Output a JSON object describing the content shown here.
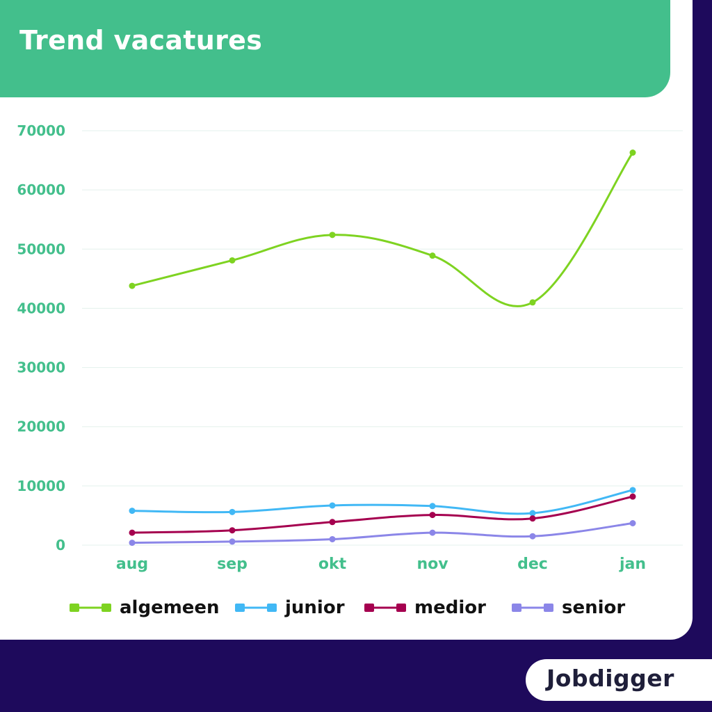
{
  "page": {
    "title": "Trend vacatures",
    "logo_text": "Jobdigger"
  },
  "colors": {
    "background": "#1e0a5c",
    "card": "#ffffff",
    "title_bar": "#43bf8c",
    "axis_labels": "#43bf8c",
    "gridline": "#e3f1ec"
  },
  "chart_data": {
    "type": "line",
    "title": "Trend vacatures",
    "categories": [
      "aug",
      "sep",
      "okt",
      "nov",
      "dec",
      "jan"
    ],
    "ylim": [
      0,
      70000
    ],
    "yticks": [
      0,
      10000,
      20000,
      30000,
      40000,
      50000,
      60000,
      70000
    ],
    "grid": true,
    "legend_position": "bottom",
    "series": [
      {
        "name": "algemeen",
        "color": "#7ed321",
        "values": [
          43800,
          48100,
          52400,
          48900,
          41000,
          66300
        ]
      },
      {
        "name": "junior",
        "color": "#41b8f5",
        "values": [
          5800,
          5600,
          6700,
          6600,
          5400,
          9300
        ]
      },
      {
        "name": "medior",
        "color": "#a5004f",
        "values": [
          2100,
          2500,
          3900,
          5100,
          4500,
          8200
        ]
      },
      {
        "name": "senior",
        "color": "#8b86e8",
        "values": [
          400,
          600,
          1000,
          2100,
          1500,
          3700
        ]
      }
    ]
  }
}
